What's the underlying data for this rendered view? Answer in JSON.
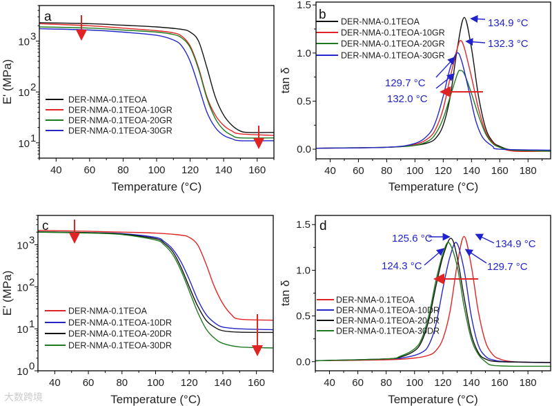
{
  "watermark": "大数跨境",
  "colors": {
    "black": "#111111",
    "red": "#e02424",
    "green": "#1f7a1f",
    "blue": "#2424c8",
    "arrow": "#e02424",
    "annotation": "#2222cc"
  },
  "chart_data": [
    {
      "panel": "a",
      "type": "line",
      "yscale": "log",
      "xlabel": "Temperature (°C)",
      "ylabel": "E' (MPa)",
      "xlim": [
        30,
        170
      ],
      "ylim": [
        5,
        5000
      ],
      "xticks": [
        40,
        60,
        80,
        100,
        120,
        140,
        160
      ],
      "yticks": [
        {
          "value": 10,
          "base": "10",
          "exp": "1"
        },
        {
          "value": 100,
          "base": "10",
          "exp": "2"
        },
        {
          "value": 1000,
          "base": "10",
          "exp": "3"
        }
      ],
      "legend_position": "center-left",
      "series": [
        {
          "name": "DER-NMA-0.1TEOA",
          "color": "#111111",
          "x": [
            30,
            60,
            80,
            100,
            115,
            120,
            125,
            130,
            135,
            140,
            145,
            150,
            155,
            170
          ],
          "y": [
            2300,
            2200,
            2050,
            1900,
            1700,
            1500,
            1000,
            300,
            80,
            35,
            22,
            17,
            16,
            16
          ]
        },
        {
          "name": "DER-NMA-0.1TEOA-10GR",
          "color": "#e02424",
          "x": [
            30,
            60,
            80,
            100,
            110,
            115,
            120,
            125,
            130,
            135,
            140,
            145,
            150,
            170
          ],
          "y": [
            2200,
            2000,
            1800,
            1600,
            1450,
            1250,
            800,
            300,
            80,
            35,
            22,
            17,
            15,
            14
          ]
        },
        {
          "name": "DER-NMA-0.1TEOA-20GR",
          "color": "#1f7a1f",
          "x": [
            30,
            60,
            80,
            100,
            110,
            115,
            120,
            125,
            130,
            135,
            140,
            145,
            150,
            170
          ],
          "y": [
            1900,
            1800,
            1650,
            1500,
            1350,
            1150,
            750,
            280,
            75,
            30,
            18,
            14,
            12.5,
            12.5
          ]
        },
        {
          "name": "DER-NMA-0.1TEOA-30GR",
          "color": "#2424c8",
          "x": [
            30,
            60,
            80,
            100,
            110,
            115,
            120,
            125,
            130,
            135,
            140,
            145,
            150,
            170
          ],
          "y": [
            1750,
            1650,
            1500,
            1300,
            1050,
            800,
            400,
            130,
            40,
            20,
            14,
            12,
            11,
            11
          ]
        }
      ],
      "annotations": []
    },
    {
      "panel": "b",
      "type": "line",
      "yscale": "linear",
      "xlabel": "Temperature (°C)",
      "ylabel": "tan δ",
      "xlim": [
        30,
        196
      ],
      "ylim": [
        -0.1,
        1.53
      ],
      "xticks": [
        40,
        60,
        80,
        100,
        120,
        140,
        160,
        180
      ],
      "yticks": [
        {
          "value": 0,
          "label": "0.0"
        },
        {
          "value": 0.5,
          "label": "0.5"
        },
        {
          "value": 1,
          "label": "1.0"
        },
        {
          "value": 1.5,
          "label": "1.5"
        }
      ],
      "legend_position": "top-left",
      "series": [
        {
          "name": "DER-NMA-0.1TEOA",
          "color": "#111111",
          "x": [
            30,
            80,
            100,
            110,
            115,
            120,
            125,
            130,
            134.9,
            140,
            145,
            150,
            155,
            160,
            170,
            196
          ],
          "y": [
            0.01,
            0.02,
            0.04,
            0.07,
            0.12,
            0.25,
            0.55,
            1.05,
            1.37,
            1.05,
            0.55,
            0.22,
            0.08,
            0.03,
            -0.01,
            -0.02
          ]
        },
        {
          "name": "DER-NMA-0.1TEOA-10GR",
          "color": "#e02424",
          "x": [
            30,
            80,
            100,
            110,
            115,
            120,
            125,
            130,
            132.3,
            135,
            140,
            145,
            150,
            155,
            160,
            170,
            196
          ],
          "y": [
            0.01,
            0.02,
            0.05,
            0.12,
            0.22,
            0.42,
            0.75,
            1.05,
            1.13,
            1.05,
            0.75,
            0.42,
            0.18,
            0.07,
            0.02,
            -0.02,
            -0.02
          ]
        },
        {
          "name": "DER-NMA-0.1TEOA-20GR",
          "color": "#1f7a1f",
          "x": [
            30,
            80,
            100,
            110,
            115,
            120,
            125,
            130,
            132,
            135,
            140,
            145,
            150,
            155,
            160,
            170,
            196
          ],
          "y": [
            0.01,
            0.02,
            0.04,
            0.09,
            0.17,
            0.32,
            0.55,
            0.78,
            0.82,
            0.78,
            0.58,
            0.35,
            0.16,
            0.06,
            0.02,
            -0.01,
            -0.02
          ]
        },
        {
          "name": "DER-NMA-0.1TEOA-30GR",
          "color": "#2424c8",
          "x": [
            30,
            80,
            100,
            110,
            115,
            120,
            125,
            129.7,
            133,
            138,
            143,
            148,
            155,
            160,
            196
          ],
          "y": [
            0.01,
            0.02,
            0.06,
            0.16,
            0.3,
            0.55,
            0.85,
            1.0,
            0.92,
            0.62,
            0.3,
            0.12,
            0.03,
            0.0,
            -0.01
          ]
        }
      ],
      "annotations": [
        "134.9 °C",
        "132.3 °C",
        "129.7 °C",
        "132.0 °C"
      ]
    },
    {
      "panel": "c",
      "type": "line",
      "yscale": "log",
      "xlabel": "Temperature (°C)",
      "ylabel": "E' (MPa)",
      "xlim": [
        30,
        170
      ],
      "ylim": [
        1,
        5000
      ],
      "xticks": [
        40,
        60,
        80,
        100,
        120,
        140,
        160
      ],
      "yticks": [
        {
          "value": 1,
          "base": "10",
          "exp": "0"
        },
        {
          "value": 10,
          "base": "10",
          "exp": "1"
        },
        {
          "value": 100,
          "base": "10",
          "exp": "2"
        },
        {
          "value": 1000,
          "base": "10",
          "exp": "3"
        }
      ],
      "legend_position": "bottom-left",
      "series": [
        {
          "name": "DER-NMA-0.1TEOA",
          "color": "#e02424",
          "x": [
            30,
            60,
            80,
            100,
            115,
            120,
            125,
            130,
            135,
            140,
            145,
            150,
            170
          ],
          "y": [
            2200,
            2100,
            2000,
            1900,
            1700,
            1500,
            1000,
            350,
            100,
            40,
            22,
            17,
            16
          ]
        },
        {
          "name": "DER-NMA-0.1TEOA-10DR",
          "color": "#2424c8",
          "x": [
            30,
            60,
            80,
            100,
            105,
            110,
            115,
            120,
            125,
            130,
            135,
            140,
            150,
            170
          ],
          "y": [
            2000,
            1950,
            1850,
            1500,
            1200,
            800,
            400,
            150,
            50,
            22,
            14,
            11,
            10,
            9.5
          ]
        },
        {
          "name": "DER-NMA-0.1TEOA-20DR",
          "color": "#111111",
          "x": [
            30,
            60,
            80,
            100,
            105,
            110,
            115,
            120,
            125,
            130,
            135,
            140,
            150,
            170
          ],
          "y": [
            2050,
            1950,
            1800,
            1400,
            1100,
            700,
            300,
            100,
            35,
            16,
            11,
            9,
            8.3,
            8.2
          ]
        },
        {
          "name": "DER-NMA-0.1TEOA-30DR",
          "color": "#1f7a1f",
          "x": [
            30,
            60,
            80,
            100,
            105,
            110,
            115,
            120,
            125,
            130,
            135,
            140,
            150,
            170
          ],
          "y": [
            2000,
            1900,
            1750,
            1300,
            1000,
            600,
            250,
            80,
            25,
            10,
            6,
            4.5,
            3.7,
            3.5
          ]
        }
      ],
      "annotations": []
    },
    {
      "panel": "d",
      "type": "line",
      "yscale": "linear",
      "xlabel": "Temperature (°C)",
      "ylabel": "tan δ",
      "xlim": [
        30,
        196
      ],
      "ylim": [
        -0.1,
        1.6
      ],
      "xticks": [
        40,
        60,
        80,
        100,
        120,
        140,
        160,
        180
      ],
      "yticks": [
        {
          "value": 0,
          "label": "0.0"
        },
        {
          "value": 0.5,
          "label": "0.5"
        },
        {
          "value": 1,
          "label": "1.0"
        },
        {
          "value": 1.5,
          "label": "1.5"
        }
      ],
      "legend_position": "center-left",
      "series": [
        {
          "name": "DER-NMA-0.1TEOA",
          "color": "#e02424",
          "x": [
            30,
            80,
            100,
            110,
            115,
            120,
            125,
            130,
            134.9,
            140,
            145,
            150,
            155,
            160,
            170,
            196
          ],
          "y": [
            0.01,
            0.02,
            0.04,
            0.07,
            0.12,
            0.25,
            0.55,
            1.05,
            1.37,
            1.05,
            0.55,
            0.22,
            0.08,
            0.03,
            0.0,
            -0.01
          ]
        },
        {
          "name": "DER-NMA-0.1TEOA-10DR",
          "color": "#2424c8",
          "x": [
            30,
            80,
            95,
            105,
            110,
            115,
            120,
            125,
            129.7,
            135,
            140,
            145,
            150,
            155,
            165,
            196
          ],
          "y": [
            0.01,
            0.03,
            0.05,
            0.1,
            0.18,
            0.4,
            0.8,
            1.15,
            1.3,
            1.0,
            0.5,
            0.18,
            0.06,
            0.02,
            0.0,
            -0.01
          ]
        },
        {
          "name": "DER-NMA-0.1TEOA-20DR",
          "color": "#111111",
          "x": [
            30,
            80,
            90,
            100,
            105,
            110,
            115,
            120,
            125.6,
            130,
            135,
            140,
            145,
            150,
            160,
            196
          ],
          "y": [
            0.01,
            0.03,
            0.05,
            0.12,
            0.22,
            0.45,
            0.82,
            1.15,
            1.35,
            1.15,
            0.7,
            0.3,
            0.1,
            0.03,
            0.0,
            -0.01
          ]
        },
        {
          "name": "DER-NMA-0.1TEOA-30DR",
          "color": "#1f7a1f",
          "x": [
            30,
            80,
            90,
            100,
            105,
            110,
            115,
            120,
            124.3,
            130,
            135,
            140,
            145,
            150,
            155,
            170,
            196
          ],
          "y": [
            0.01,
            0.03,
            0.06,
            0.14,
            0.25,
            0.5,
            0.88,
            1.18,
            1.3,
            1.05,
            0.6,
            0.25,
            0.08,
            0.0,
            -0.04,
            -0.05,
            -0.05
          ]
        }
      ],
      "annotations": [
        "125.6 °C",
        "134.9 °C",
        "124.3 °C",
        "129.7 °C"
      ]
    }
  ]
}
